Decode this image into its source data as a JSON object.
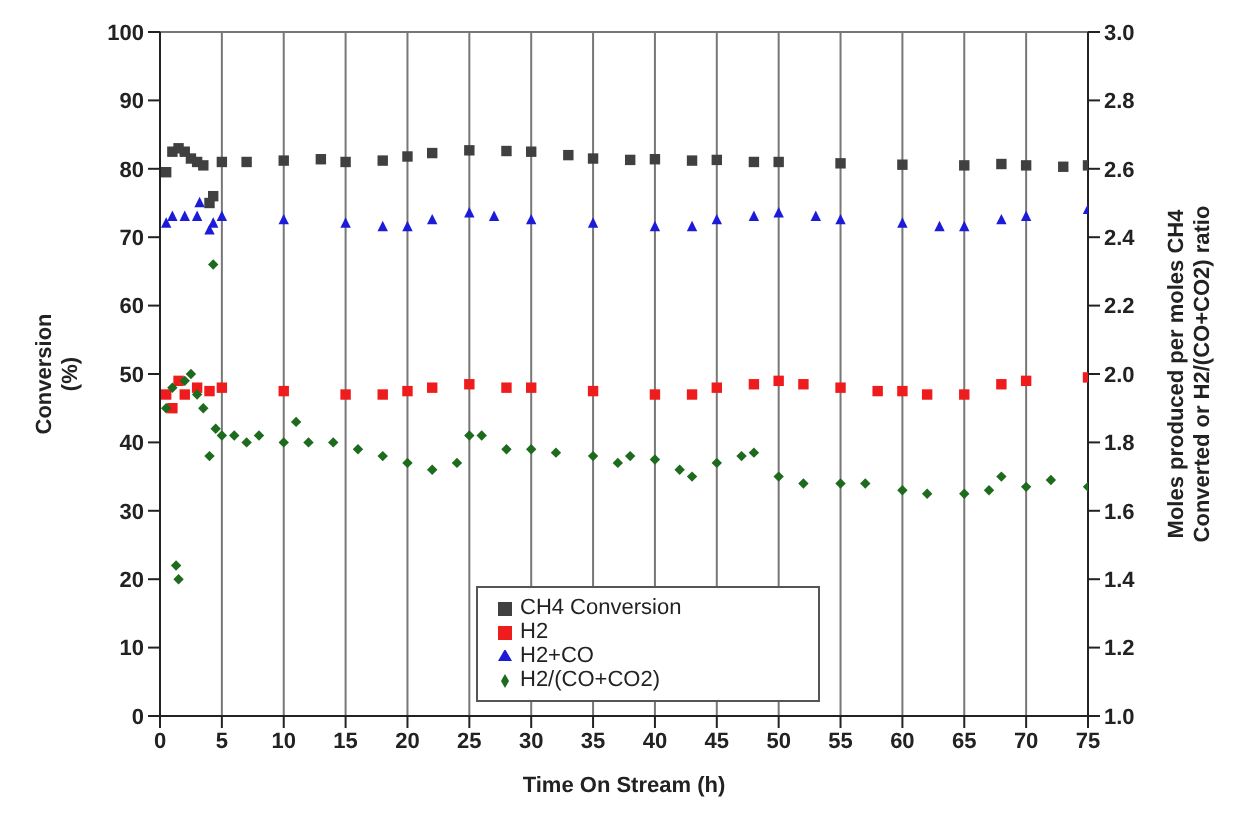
{
  "chart_data": {
    "type": "scatter",
    "xlabel": "Time On Stream (h)",
    "ylabel": "Conversion (%)",
    "y2label": "Moles produced per moles CH4 Converted or H2/(CO+CO2) ratio",
    "xlim": [
      0,
      75
    ],
    "xticks": [
      0,
      5,
      10,
      15,
      20,
      25,
      30,
      35,
      40,
      45,
      50,
      55,
      60,
      65,
      70,
      75
    ],
    "ylim": [
      0,
      100
    ],
    "yticks": [
      0,
      10,
      20,
      30,
      40,
      50,
      60,
      70,
      80,
      90,
      100
    ],
    "y2lim": [
      1.0,
      3.0
    ],
    "y2ticks": [
      {
        "value": 1.0,
        "label": "1.0"
      },
      1.2,
      1.4,
      1.6,
      1.8,
      {
        "value": 2.0,
        "label": "2.0"
      },
      2.2,
      2.4,
      2.6,
      2.8,
      {
        "value": 3.0,
        "label": "3.0"
      }
    ],
    "grid": true,
    "legend": "bottom",
    "series": [
      {
        "name": "CH4 Conversion",
        "color": "#404040",
        "marker": "square",
        "x": [
          0.5,
          1,
          1.5,
          2,
          2.5,
          3,
          3.5,
          4,
          4.3,
          5,
          7,
          10,
          13,
          15,
          18,
          20,
          22,
          25,
          28,
          30,
          33,
          35,
          38,
          40,
          43,
          45,
          48,
          50,
          55,
          60,
          65,
          68,
          70,
          73,
          75
        ],
        "values": [
          79.5,
          82.5,
          83,
          82.5,
          81.5,
          81,
          80.5,
          75,
          76,
          81,
          81,
          81.2,
          81.4,
          81,
          81.2,
          81.8,
          82.3,
          82.7,
          82.6,
          82.5,
          82,
          81.5,
          81.3,
          81.4,
          81.2,
          81.3,
          81,
          81,
          80.8,
          80.6,
          80.5,
          80.7,
          80.5,
          80.3,
          80.5
        ]
      },
      {
        "name": "H2",
        "color": "#ee1c1c",
        "marker": "square",
        "axis": "y2",
        "x": [
          0.5,
          1,
          1.5,
          2,
          3,
          4,
          5,
          10,
          15,
          18,
          20,
          22,
          25,
          28,
          30,
          35,
          40,
          43,
          45,
          48,
          50,
          52,
          55,
          58,
          60,
          62,
          65,
          68,
          70,
          75
        ],
        "values": [
          1.94,
          1.9,
          1.98,
          1.94,
          1.96,
          1.95,
          1.96,
          1.95,
          1.94,
          1.94,
          1.95,
          1.96,
          1.97,
          1.96,
          1.96,
          1.95,
          1.94,
          1.94,
          1.96,
          1.97,
          1.98,
          1.97,
          1.96,
          1.95,
          1.95,
          1.94,
          1.94,
          1.97,
          1.98,
          1.99
        ]
      },
      {
        "name": "H2+CO",
        "color": "#1c1cd8",
        "marker": "triangle",
        "axis": "y2",
        "x": [
          0.5,
          1,
          2,
          3,
          3.2,
          4,
          4.3,
          5,
          10,
          15,
          18,
          20,
          22,
          25,
          27,
          30,
          35,
          40,
          43,
          45,
          48,
          50,
          53,
          55,
          60,
          63,
          65,
          68,
          70,
          75
        ],
        "values": [
          2.44,
          2.46,
          2.46,
          2.46,
          2.5,
          2.42,
          2.44,
          2.46,
          2.45,
          2.44,
          2.43,
          2.43,
          2.45,
          2.47,
          2.46,
          2.45,
          2.44,
          2.43,
          2.43,
          2.45,
          2.46,
          2.47,
          2.46,
          2.45,
          2.44,
          2.43,
          2.43,
          2.45,
          2.46,
          2.48
        ]
      },
      {
        "name": "H2/(CO+CO2)",
        "color": "#1e6b1e",
        "marker": "diamond",
        "axis": "y2",
        "x": [
          0.5,
          1,
          1.3,
          1.5,
          2,
          2.5,
          3,
          3.5,
          4,
          4.3,
          4.5,
          5,
          6,
          7,
          8,
          10,
          11,
          12,
          14,
          16,
          18,
          20,
          22,
          24,
          25,
          26,
          28,
          30,
          32,
          35,
          37,
          38,
          40,
          42,
          43,
          45,
          47,
          48,
          50,
          52,
          55,
          57,
          60,
          62,
          65,
          67,
          68,
          70,
          72,
          75
        ],
        "values": [
          1.9,
          1.96,
          1.44,
          1.4,
          1.98,
          2.0,
          1.94,
          1.9,
          1.76,
          2.32,
          1.84,
          1.82,
          1.82,
          1.8,
          1.82,
          1.8,
          1.86,
          1.8,
          1.8,
          1.78,
          1.76,
          1.74,
          1.72,
          1.74,
          1.82,
          1.82,
          1.78,
          1.78,
          1.77,
          1.76,
          1.74,
          1.76,
          1.75,
          1.72,
          1.7,
          1.74,
          1.76,
          1.77,
          1.7,
          1.68,
          1.68,
          1.68,
          1.66,
          1.65,
          1.65,
          1.66,
          1.7,
          1.67,
          1.69,
          1.67
        ]
      }
    ]
  }
}
